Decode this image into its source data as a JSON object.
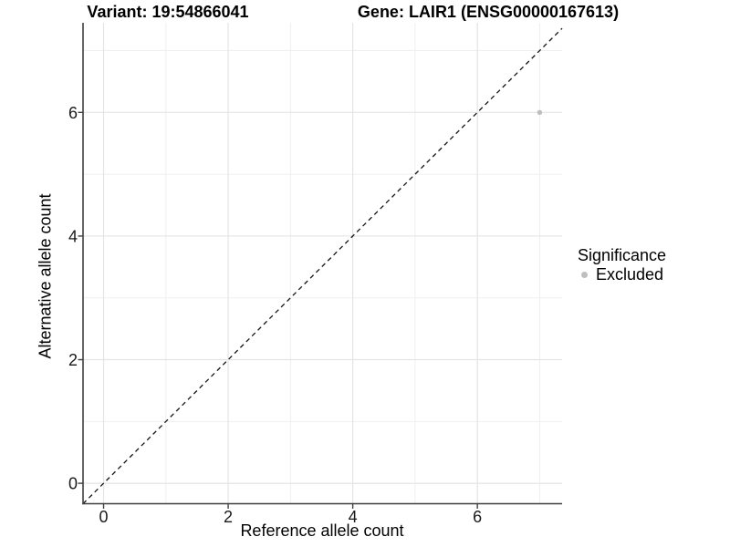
{
  "chart_data": {
    "type": "scatter",
    "title_left": "Variant: 19:54866041",
    "title_right": "Gene: LAIR1 (ENSG00000167613)",
    "xlabel": "Reference allele count",
    "ylabel": "Alternative allele count",
    "xlim": [
      -0.33,
      7.36
    ],
    "ylim": [
      -0.33,
      7.45
    ],
    "x_ticks": [
      0,
      2,
      4,
      6
    ],
    "y_ticks": [
      0,
      2,
      4,
      6
    ],
    "x_minor_ticks": [
      1,
      3,
      5,
      7
    ],
    "y_minor_ticks": [
      1,
      3,
      5,
      7
    ],
    "grid": true,
    "points": [
      {
        "x": 7,
        "y": 6,
        "series": "Excluded"
      }
    ],
    "series": [
      {
        "name": "Excluded",
        "color": "#bebebe"
      }
    ],
    "reference_line": {
      "type": "identity",
      "slope": 1,
      "intercept": 0,
      "style": "dashed",
      "color": "#141414"
    },
    "legend": {
      "title": "Significance",
      "position": "right",
      "entries": [
        {
          "label": "Excluded",
          "color": "#bebebe"
        }
      ]
    }
  },
  "colors": {
    "background": "#ffffff",
    "axis_line": "#3f3f3f",
    "grid_major": "#e4e4e4",
    "grid_minor": "#efefef",
    "point": "#bebebe",
    "text": "#1a1a1a"
  }
}
